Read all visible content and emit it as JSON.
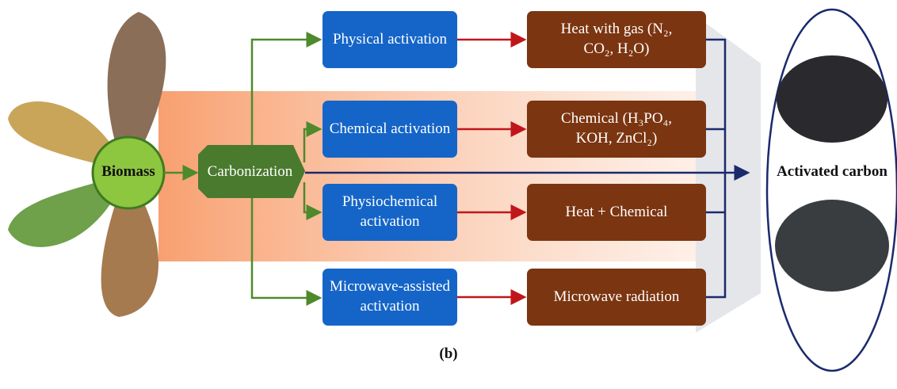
{
  "source": "Biomass",
  "step": "Carbonization",
  "routes": [
    {
      "method": "Physical activation",
      "treatment": "Heat with gas (N₂, CO₂, H₂O)"
    },
    {
      "method": "Chemical activation",
      "treatment": "Chemical (H₃PO₄, KOH, ZnCl₂)"
    },
    {
      "method": "Physiochemical activation",
      "treatment": "Heat + Chemical"
    },
    {
      "method": "Microwave-assisted activation",
      "treatment": "Microwave radiation"
    }
  ],
  "product": "Activated carbon",
  "caption": "(b)"
}
